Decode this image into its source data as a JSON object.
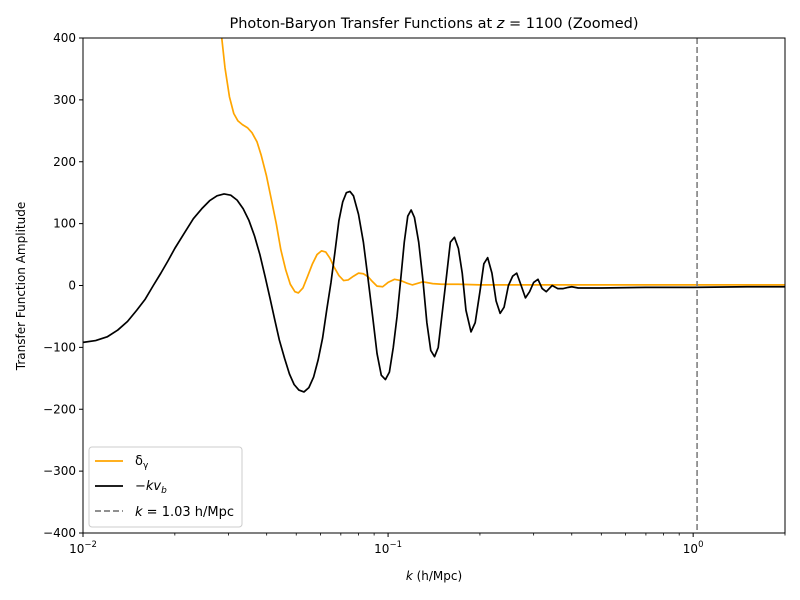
{
  "chart_data": {
    "type": "line",
    "title": "Photon-Baryon Transfer Functions at z = 1100 (Zoomed)",
    "xlabel": "k (h/Mpc)",
    "ylabel": "Transfer Function Amplitude",
    "xscale": "log",
    "xlim": [
      0.01,
      2.0
    ],
    "ylim": [
      -400,
      400
    ],
    "grid": false,
    "legend_position": "lower-left",
    "x_tick_labels": [
      "10^-2",
      "10^-1",
      "10^0"
    ],
    "x_tick_values": [
      0.01,
      0.1,
      1.0
    ],
    "y_ticks": [
      -400,
      -300,
      -200,
      -100,
      0,
      100,
      200,
      300,
      400
    ],
    "series": [
      {
        "name": "δγ",
        "color": "#ffa500",
        "points": [
          [
            0.0285,
            400
          ],
          [
            0.0292,
            352
          ],
          [
            0.0302,
            305
          ],
          [
            0.0312,
            278
          ],
          [
            0.0322,
            266
          ],
          [
            0.0333,
            260
          ],
          [
            0.0346,
            255
          ],
          [
            0.0358,
            247
          ],
          [
            0.0372,
            232
          ],
          [
            0.0384,
            210
          ],
          [
            0.0399,
            178
          ],
          [
            0.0414,
            140
          ],
          [
            0.043,
            100
          ],
          [
            0.0445,
            58
          ],
          [
            0.0462,
            25
          ],
          [
            0.0478,
            2
          ],
          [
            0.0495,
            -10
          ],
          [
            0.0508,
            -12
          ],
          [
            0.0526,
            -4
          ],
          [
            0.0545,
            15
          ],
          [
            0.0565,
            35
          ],
          [
            0.0585,
            50
          ],
          [
            0.0605,
            56
          ],
          [
            0.0625,
            54
          ],
          [
            0.0645,
            44
          ],
          [
            0.0665,
            30
          ],
          [
            0.069,
            16
          ],
          [
            0.0715,
            8
          ],
          [
            0.074,
            9
          ],
          [
            0.077,
            15
          ],
          [
            0.08,
            20
          ],
          [
            0.083,
            19
          ],
          [
            0.086,
            14
          ],
          [
            0.089,
            6
          ],
          [
            0.092,
            -1
          ],
          [
            0.096,
            -2
          ],
          [
            0.1,
            5
          ],
          [
            0.105,
            10
          ],
          [
            0.11,
            8
          ],
          [
            0.115,
            4
          ],
          [
            0.12,
            1
          ],
          [
            0.13,
            6
          ],
          [
            0.14,
            3
          ],
          [
            0.15,
            2
          ],
          [
            0.17,
            2
          ],
          [
            0.2,
            1
          ],
          [
            0.3,
            1
          ],
          [
            0.5,
            1
          ],
          [
            1.0,
            1
          ],
          [
            2.0,
            1
          ]
        ]
      },
      {
        "name": "−kvb",
        "color": "#000000",
        "points": [
          [
            0.01,
            -92
          ],
          [
            0.011,
            -89
          ],
          [
            0.012,
            -83
          ],
          [
            0.013,
            -72
          ],
          [
            0.014,
            -58
          ],
          [
            0.015,
            -40
          ],
          [
            0.016,
            -22
          ],
          [
            0.017,
            0
          ],
          [
            0.018,
            20
          ],
          [
            0.019,
            40
          ],
          [
            0.02,
            60
          ],
          [
            0.0215,
            85
          ],
          [
            0.023,
            108
          ],
          [
            0.0245,
            124
          ],
          [
            0.026,
            137
          ],
          [
            0.0275,
            145
          ],
          [
            0.029,
            148
          ],
          [
            0.0305,
            146
          ],
          [
            0.032,
            138
          ],
          [
            0.0335,
            124
          ],
          [
            0.035,
            105
          ],
          [
            0.0365,
            80
          ],
          [
            0.038,
            50
          ],
          [
            0.0395,
            15
          ],
          [
            0.041,
            -20
          ],
          [
            0.0425,
            -55
          ],
          [
            0.044,
            -88
          ],
          [
            0.0458,
            -118
          ],
          [
            0.0475,
            -143
          ],
          [
            0.0492,
            -160
          ],
          [
            0.051,
            -169
          ],
          [
            0.053,
            -172
          ],
          [
            0.055,
            -165
          ],
          [
            0.057,
            -148
          ],
          [
            0.059,
            -120
          ],
          [
            0.061,
            -85
          ],
          [
            0.063,
            -38
          ],
          [
            0.065,
            5
          ],
          [
            0.067,
            55
          ],
          [
            0.069,
            105
          ],
          [
            0.071,
            135
          ],
          [
            0.073,
            150
          ],
          [
            0.075,
            152
          ],
          [
            0.077,
            145
          ],
          [
            0.08,
            115
          ],
          [
            0.083,
            70
          ],
          [
            0.086,
            10
          ],
          [
            0.089,
            -50
          ],
          [
            0.092,
            -110
          ],
          [
            0.095,
            -145
          ],
          [
            0.098,
            -152
          ],
          [
            0.101,
            -140
          ],
          [
            0.104,
            -100
          ],
          [
            0.107,
            -50
          ],
          [
            0.11,
            10
          ],
          [
            0.113,
            70
          ],
          [
            0.116,
            112
          ],
          [
            0.119,
            122
          ],
          [
            0.122,
            110
          ],
          [
            0.126,
            70
          ],
          [
            0.13,
            10
          ],
          [
            0.134,
            -60
          ],
          [
            0.138,
            -105
          ],
          [
            0.142,
            -115
          ],
          [
            0.146,
            -100
          ],
          [
            0.15,
            -50
          ],
          [
            0.155,
            10
          ],
          [
            0.16,
            70
          ],
          [
            0.165,
            78
          ],
          [
            0.17,
            60
          ],
          [
            0.175,
            20
          ],
          [
            0.18,
            -40
          ],
          [
            0.187,
            -75
          ],
          [
            0.193,
            -60
          ],
          [
            0.2,
            -10
          ],
          [
            0.206,
            35
          ],
          [
            0.212,
            45
          ],
          [
            0.219,
            20
          ],
          [
            0.226,
            -25
          ],
          [
            0.233,
            -45
          ],
          [
            0.24,
            -35
          ],
          [
            0.248,
            0
          ],
          [
            0.256,
            15
          ],
          [
            0.264,
            20
          ],
          [
            0.273,
            0
          ],
          [
            0.282,
            -20
          ],
          [
            0.291,
            -10
          ],
          [
            0.3,
            5
          ],
          [
            0.31,
            10
          ],
          [
            0.32,
            -5
          ],
          [
            0.33,
            -10
          ],
          [
            0.345,
            0
          ],
          [
            0.36,
            -5
          ],
          [
            0.375,
            -5
          ],
          [
            0.39,
            -3
          ],
          [
            0.4,
            -2
          ],
          [
            0.42,
            -4
          ],
          [
            0.45,
            -4
          ],
          [
            0.5,
            -4
          ],
          [
            0.7,
            -3
          ],
          [
            1.0,
            -3
          ],
          [
            1.5,
            -2
          ],
          [
            2.0,
            -2
          ]
        ]
      }
    ],
    "vlines": [
      {
        "name": "k = 1.03 h/Mpc",
        "x": 1.03,
        "color": "#808080",
        "style": "dashed"
      }
    ]
  }
}
